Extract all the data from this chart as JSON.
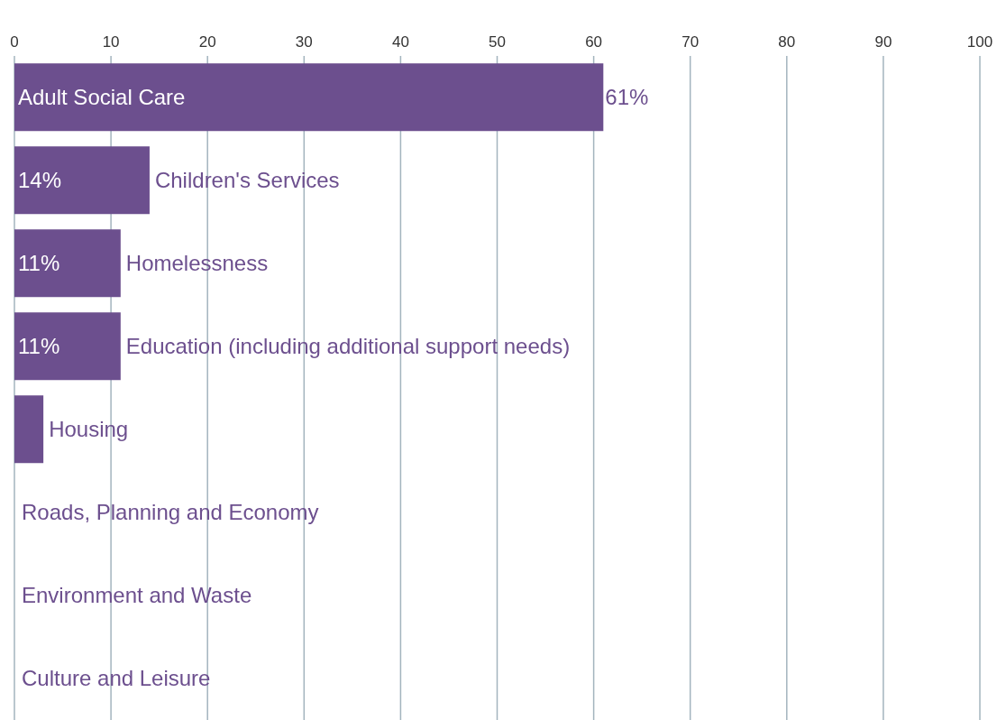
{
  "chart_data": {
    "type": "bar",
    "orientation": "horizontal",
    "categories": [
      "Adult Social Care",
      "Children's Services",
      "Homelessness",
      "Education (including additional support needs)",
      "Housing",
      "Roads, Planning and Economy",
      "Environment and Waste",
      "Culture and Leisure"
    ],
    "values": [
      61,
      14,
      11,
      11,
      3,
      0,
      0,
      0
    ],
    "value_labels": [
      "61%",
      "14%",
      "11%",
      "11%",
      null,
      null,
      null,
      null
    ],
    "color": "#6c4f8e",
    "xlim": [
      0,
      100
    ],
    "xticks": [
      0,
      10,
      20,
      30,
      40,
      50,
      60,
      70,
      80,
      90,
      100
    ],
    "grid": "x"
  }
}
